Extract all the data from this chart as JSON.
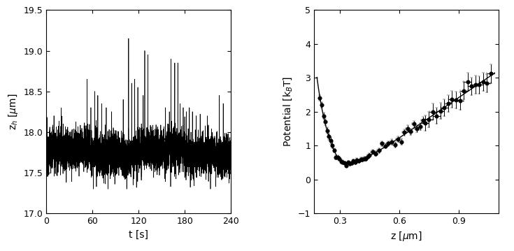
{
  "left_plot": {
    "xlabel": "t [s]",
    "ylabel": "z$_h$ [$\\mu$m]",
    "xlim": [
      0,
      240
    ],
    "ylim": [
      17.0,
      19.5
    ],
    "xticks": [
      0,
      60,
      120,
      180,
      240
    ],
    "yticks": [
      17.0,
      17.5,
      18.0,
      18.5,
      19.0,
      19.5
    ],
    "baseline": 17.75,
    "noise_std": 0.13,
    "line_color": "#000000",
    "line_width": 0.5
  },
  "right_plot": {
    "xlabel": "z [$\\mu$m]",
    "ylabel": "Potential [k$_B$T]",
    "xlim": [
      0.17,
      1.1
    ],
    "ylim": [
      -1.0,
      5.0
    ],
    "xticks": [
      0.3,
      0.6,
      0.9
    ],
    "yticks": [
      -1,
      0,
      1,
      2,
      3,
      4,
      5
    ],
    "fit_color": "#000000",
    "data_color": "#000000",
    "line_width": 1.0,
    "marker_size": 4
  }
}
